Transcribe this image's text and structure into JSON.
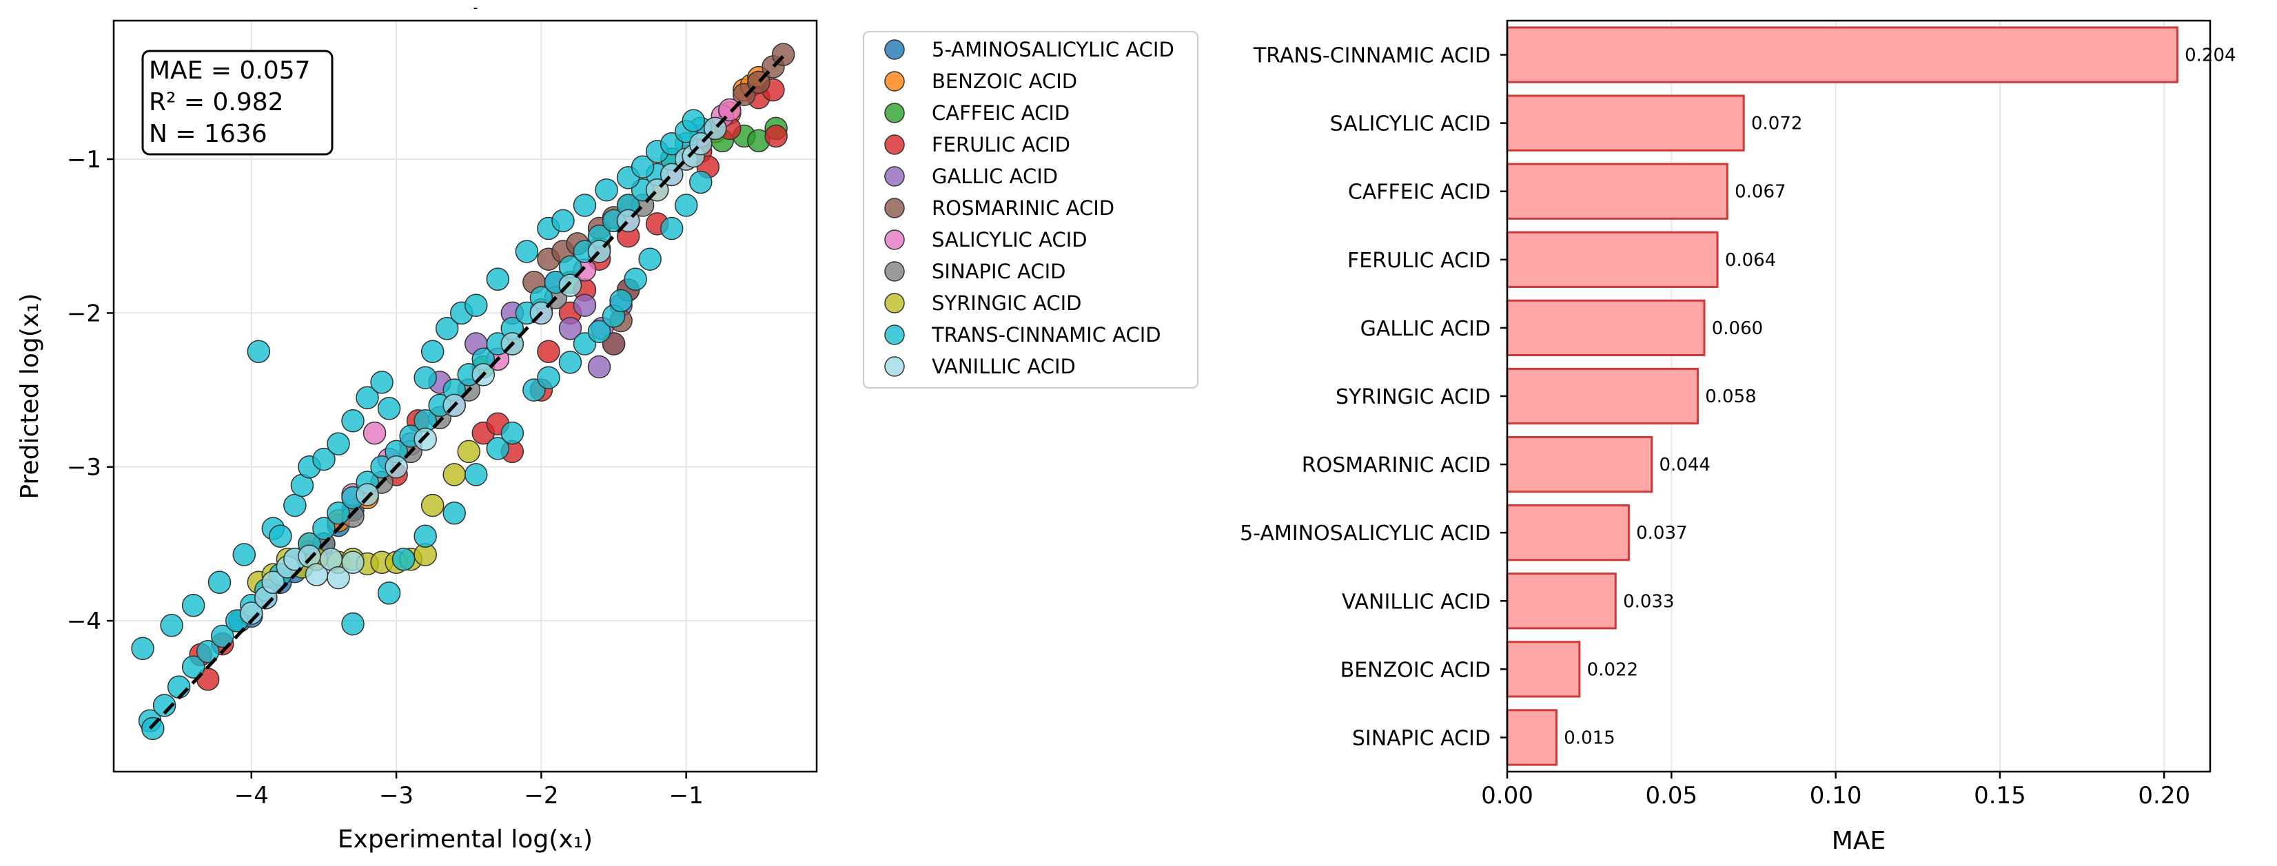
{
  "chart_data": [
    {
      "type": "scatter",
      "title": "",
      "title_mark": "-",
      "xlabel": "Experimental log(x₁)",
      "ylabel": "Predicted log(x₁)",
      "xlim": [
        -4.95,
        -0.1
      ],
      "ylim": [
        -4.98,
        -0.1
      ],
      "xticks": [
        -4,
        -3,
        -2,
        -1
      ],
      "yticks": [
        -4,
        -3,
        -2,
        -1
      ],
      "xtick_labels": [
        "−4",
        "−3",
        "−2",
        "−1"
      ],
      "ytick_labels": [
        "−4",
        "−3",
        "−2",
        "−1"
      ],
      "grid": true,
      "legend_position": "outside-right",
      "stats_box": [
        "MAE = 0.057",
        "R² = 0.982",
        "N = 1636"
      ],
      "reference_line": [
        [
          -4.7,
          -4.7
        ],
        [
          -0.3,
          -0.3
        ]
      ],
      "series": [
        {
          "name": "5-AMINOSALICYLIC ACID",
          "color": "#1f77b4",
          "points": [
            [
              -4.08,
              -4.0
            ],
            [
              -4.0,
              -3.97
            ],
            [
              -3.9,
              -3.85
            ],
            [
              -3.8,
              -3.75
            ],
            [
              -3.7,
              -3.68
            ],
            [
              -3.6,
              -3.55
            ],
            [
              -3.5,
              -3.5
            ],
            [
              -3.4,
              -3.38
            ],
            [
              -3.3,
              -3.28
            ],
            [
              -3.2,
              -3.18
            ]
          ]
        },
        {
          "name": "BENZOIC ACID",
          "color": "#ff7f0e",
          "points": [
            [
              -3.6,
              -3.5
            ],
            [
              -3.55,
              -3.6
            ],
            [
              -3.4,
              -3.35
            ],
            [
              -3.2,
              -3.2
            ],
            [
              -1.6,
              -1.58
            ],
            [
              -1.4,
              -1.4
            ],
            [
              -1.2,
              -1.2
            ],
            [
              -1.0,
              -0.98
            ],
            [
              -0.9,
              -0.85
            ],
            [
              -0.8,
              -0.82
            ],
            [
              -0.7,
              -0.7
            ],
            [
              -0.6,
              -0.55
            ],
            [
              -0.55,
              -0.52
            ],
            [
              -0.5,
              -0.47
            ]
          ]
        },
        {
          "name": "CAFFEIC ACID",
          "color": "#2ca02c",
          "points": [
            [
              -2.4,
              -2.35
            ],
            [
              -2.2,
              -2.2
            ],
            [
              -2.0,
              -1.98
            ],
            [
              -1.8,
              -1.8
            ],
            [
              -1.1,
              -1.0
            ],
            [
              -0.9,
              -0.9
            ],
            [
              -0.75,
              -0.88
            ],
            [
              -0.6,
              -0.85
            ],
            [
              -0.5,
              -0.88
            ],
            [
              -0.38,
              -0.8
            ]
          ]
        },
        {
          "name": "FERULIC ACID",
          "color": "#d62728",
          "points": [
            [
              -4.35,
              -4.22
            ],
            [
              -4.3,
              -4.38
            ],
            [
              -4.2,
              -4.15
            ],
            [
              -3.0,
              -3.05
            ],
            [
              -2.85,
              -2.7
            ],
            [
              -2.4,
              -2.78
            ],
            [
              -2.3,
              -2.72
            ],
            [
              -2.2,
              -2.9
            ],
            [
              -2.0,
              -2.5
            ],
            [
              -1.95,
              -2.25
            ],
            [
              -1.8,
              -2.0
            ],
            [
              -1.7,
              -1.85
            ],
            [
              -1.6,
              -1.65
            ],
            [
              -1.4,
              -1.5
            ],
            [
              -1.2,
              -1.42
            ],
            [
              -1.0,
              -1.0
            ],
            [
              -0.9,
              -0.95
            ],
            [
              -0.85,
              -1.05
            ],
            [
              -0.7,
              -0.8
            ],
            [
              -0.5,
              -0.6
            ],
            [
              -0.4,
              -0.55
            ],
            [
              -0.38,
              -0.85
            ]
          ]
        },
        {
          "name": "GALLIC ACID",
          "color": "#9467bd",
          "points": [
            [
              -2.7,
              -2.45
            ],
            [
              -2.45,
              -2.2
            ],
            [
              -2.2,
              -2.0
            ],
            [
              -1.9,
              -1.8
            ],
            [
              -1.8,
              -2.1
            ],
            [
              -1.7,
              -1.95
            ],
            [
              -1.6,
              -2.35
            ],
            [
              -1.58,
              -2.1
            ],
            [
              -1.5,
              -2.2
            ],
            [
              -1.45,
              -1.95
            ],
            [
              -1.4,
              -1.85
            ]
          ]
        },
        {
          "name": "ROSMARINIC ACID",
          "color": "#8c564b",
          "points": [
            [
              -2.05,
              -1.8
            ],
            [
              -1.95,
              -1.65
            ],
            [
              -1.85,
              -1.6
            ],
            [
              -1.75,
              -1.55
            ],
            [
              -1.6,
              -1.45
            ],
            [
              -1.5,
              -1.38
            ],
            [
              -1.4,
              -1.3
            ],
            [
              -1.5,
              -2.2
            ],
            [
              -1.45,
              -2.05
            ],
            [
              -1.4,
              -1.85
            ],
            [
              -0.8,
              -0.8
            ],
            [
              -0.6,
              -0.58
            ],
            [
              -0.5,
              -0.5
            ],
            [
              -0.4,
              -0.4
            ],
            [
              -0.33,
              -0.32
            ]
          ]
        },
        {
          "name": "SALICYLIC ACID",
          "color": "#e377c2",
          "points": [
            [
              -3.3,
              -3.18
            ],
            [
              -3.15,
              -2.78
            ],
            [
              -3.05,
              -2.95
            ],
            [
              -2.9,
              -2.85
            ],
            [
              -2.6,
              -2.6
            ],
            [
              -2.3,
              -2.3
            ],
            [
              -2.0,
              -2.0
            ],
            [
              -1.7,
              -1.72
            ],
            [
              -1.4,
              -1.4
            ],
            [
              -1.1,
              -1.1
            ],
            [
              -0.9,
              -0.85
            ],
            [
              -0.75,
              -0.72
            ],
            [
              -0.7,
              -0.68
            ]
          ]
        },
        {
          "name": "SINAPIC ACID",
          "color": "#7f7f7f",
          "points": [
            [
              -3.5,
              -3.5
            ],
            [
              -3.3,
              -3.32
            ],
            [
              -3.1,
              -3.1
            ],
            [
              -2.9,
              -2.9
            ],
            [
              -2.7,
              -2.68
            ],
            [
              -2.5,
              -2.5
            ],
            [
              -2.2,
              -2.2
            ],
            [
              -1.9,
              -1.9
            ],
            [
              -1.6,
              -1.6
            ],
            [
              -1.3,
              -1.3
            ]
          ]
        },
        {
          "name": "SYRINGIC ACID",
          "color": "#bcbd22",
          "points": [
            [
              -3.95,
              -3.75
            ],
            [
              -3.85,
              -3.7
            ],
            [
              -3.75,
              -3.6
            ],
            [
              -3.65,
              -3.65
            ],
            [
              -3.55,
              -3.6
            ],
            [
              -3.4,
              -3.62
            ],
            [
              -3.3,
              -3.6
            ],
            [
              -3.2,
              -3.63
            ],
            [
              -3.1,
              -3.62
            ],
            [
              -3.0,
              -3.62
            ],
            [
              -2.9,
              -3.6
            ],
            [
              -2.8,
              -3.57
            ],
            [
              -2.75,
              -3.25
            ],
            [
              -2.6,
              -3.05
            ],
            [
              -2.5,
              -2.9
            ]
          ]
        },
        {
          "name": "TRANS-CINNAMIC ACID",
          "color": "#17becf",
          "points": [
            [
              -4.7,
              -4.65
            ],
            [
              -4.68,
              -4.7
            ],
            [
              -4.6,
              -4.55
            ],
            [
              -4.5,
              -4.43
            ],
            [
              -4.4,
              -4.3
            ],
            [
              -4.3,
              -4.2
            ],
            [
              -4.2,
              -4.1
            ],
            [
              -4.1,
              -4.0
            ],
            [
              -4.0,
              -3.9
            ],
            [
              -3.9,
              -3.8
            ],
            [
              -3.8,
              -3.7
            ],
            [
              -3.7,
              -3.6
            ],
            [
              -3.6,
              -3.5
            ],
            [
              -3.5,
              -3.4
            ],
            [
              -3.4,
              -3.3
            ],
            [
              -3.3,
              -3.2
            ],
            [
              -3.2,
              -3.1
            ],
            [
              -3.1,
              -3.0
            ],
            [
              -3.0,
              -2.9
            ],
            [
              -2.9,
              -2.8
            ],
            [
              -2.8,
              -2.7
            ],
            [
              -2.7,
              -2.6
            ],
            [
              -2.6,
              -2.5
            ],
            [
              -2.5,
              -2.4
            ],
            [
              -2.4,
              -2.3
            ],
            [
              -2.3,
              -2.2
            ],
            [
              -2.2,
              -2.1
            ],
            [
              -2.1,
              -2.0
            ],
            [
              -2.0,
              -1.9
            ],
            [
              -1.9,
              -1.8
            ],
            [
              -1.8,
              -1.7
            ],
            [
              -1.7,
              -1.6
            ],
            [
              -1.6,
              -1.5
            ],
            [
              -1.5,
              -1.4
            ],
            [
              -1.4,
              -1.3
            ],
            [
              -1.3,
              -1.2
            ],
            [
              -1.2,
              -1.1
            ],
            [
              -1.1,
              -1.0
            ],
            [
              -1.0,
              -0.9
            ],
            [
              -0.9,
              -0.8
            ],
            [
              -4.75,
              -4.18
            ],
            [
              -4.55,
              -4.03
            ],
            [
              -4.4,
              -3.9
            ],
            [
              -4.22,
              -3.75
            ],
            [
              -4.05,
              -3.57
            ],
            [
              -3.95,
              -2.25
            ],
            [
              -3.85,
              -3.4
            ],
            [
              -3.8,
              -3.45
            ],
            [
              -3.7,
              -3.25
            ],
            [
              -3.65,
              -3.12
            ],
            [
              -3.6,
              -3.0
            ],
            [
              -3.5,
              -2.95
            ],
            [
              -3.4,
              -2.85
            ],
            [
              -3.3,
              -2.7
            ],
            [
              -3.2,
              -2.55
            ],
            [
              -3.1,
              -2.45
            ],
            [
              -3.05,
              -2.62
            ],
            [
              -2.8,
              -2.42
            ],
            [
              -2.75,
              -2.25
            ],
            [
              -2.65,
              -2.1
            ],
            [
              -2.55,
              -2.0
            ],
            [
              -2.45,
              -1.95
            ],
            [
              -2.3,
              -1.78
            ],
            [
              -2.1,
              -1.6
            ],
            [
              -1.95,
              -1.45
            ],
            [
              -1.85,
              -1.4
            ],
            [
              -1.7,
              -1.3
            ],
            [
              -1.55,
              -1.2
            ],
            [
              -1.4,
              -1.12
            ],
            [
              -1.3,
              -1.05
            ],
            [
              -1.2,
              -0.95
            ],
            [
              -1.1,
              -0.9
            ],
            [
              -1.0,
              -0.82
            ],
            [
              -0.95,
              -0.75
            ],
            [
              -3.3,
              -4.02
            ],
            [
              -3.05,
              -3.82
            ],
            [
              -2.95,
              -3.6
            ],
            [
              -2.8,
              -3.45
            ],
            [
              -2.6,
              -3.3
            ],
            [
              -2.45,
              -3.05
            ],
            [
              -2.3,
              -2.88
            ],
            [
              -2.2,
              -2.78
            ],
            [
              -2.05,
              -2.5
            ],
            [
              -1.95,
              -2.42
            ],
            [
              -1.8,
              -2.32
            ],
            [
              -1.7,
              -2.2
            ],
            [
              -1.6,
              -2.12
            ],
            [
              -1.5,
              -2.02
            ],
            [
              -1.45,
              -1.92
            ],
            [
              -1.35,
              -1.78
            ],
            [
              -1.25,
              -1.65
            ],
            [
              -1.1,
              -1.45
            ],
            [
              -1.0,
              -1.3
            ],
            [
              -0.9,
              -1.15
            ]
          ]
        },
        {
          "name": "VANILLIC ACID",
          "color": "#9edae5",
          "points": [
            [
              -4.0,
              -3.95
            ],
            [
              -3.9,
              -3.85
            ],
            [
              -3.85,
              -3.75
            ],
            [
              -3.75,
              -3.65
            ],
            [
              -3.7,
              -3.6
            ],
            [
              -3.6,
              -3.58
            ],
            [
              -3.55,
              -3.7
            ],
            [
              -3.45,
              -3.6
            ],
            [
              -3.4,
              -3.72
            ],
            [
              -3.3,
              -3.62
            ],
            [
              -3.2,
              -3.18
            ],
            [
              -3.0,
              -3.0
            ],
            [
              -2.8,
              -2.82
            ],
            [
              -2.6,
              -2.6
            ],
            [
              -2.4,
              -2.4
            ],
            [
              -2.2,
              -2.2
            ],
            [
              -2.0,
              -2.0
            ],
            [
              -1.8,
              -1.82
            ],
            [
              -1.6,
              -1.6
            ],
            [
              -1.4,
              -1.4
            ],
            [
              -1.2,
              -1.2
            ],
            [
              -1.1,
              -1.1
            ],
            [
              -1.0,
              -1.0
            ],
            [
              -0.95,
              -0.98
            ],
            [
              -0.9,
              -0.9
            ],
            [
              -0.8,
              -0.8
            ]
          ]
        }
      ]
    },
    {
      "type": "bar",
      "orientation": "horizontal",
      "title": "",
      "xlabel": "MAE",
      "ylabel": "",
      "xlim": [
        0,
        0.214
      ],
      "xticks": [
        0.0,
        0.05,
        0.1,
        0.15,
        0.2
      ],
      "xtick_labels": [
        "0.00",
        "0.05",
        "0.10",
        "0.15",
        "0.20"
      ],
      "grid": true,
      "bar_color": "#ffa7a7",
      "edge_color": "#cc3a3a",
      "categories": [
        "TRANS-CINNAMIC ACID",
        "SALICYLIC ACID",
        "CAFFEIC ACID",
        "FERULIC ACID",
        "GALLIC ACID",
        "SYRINGIC ACID",
        "ROSMARINIC ACID",
        "5-AMINOSALICYLIC ACID",
        "VANILLIC ACID",
        "BENZOIC ACID",
        "SINAPIC ACID"
      ],
      "values": [
        0.204,
        0.072,
        0.067,
        0.064,
        0.06,
        0.058,
        0.044,
        0.037,
        0.033,
        0.022,
        0.015
      ],
      "value_labels": [
        "0.204",
        "0.072",
        "0.067",
        "0.064",
        "0.060",
        "0.058",
        "0.044",
        "0.037",
        "0.033",
        "0.022",
        "0.015"
      ]
    }
  ]
}
